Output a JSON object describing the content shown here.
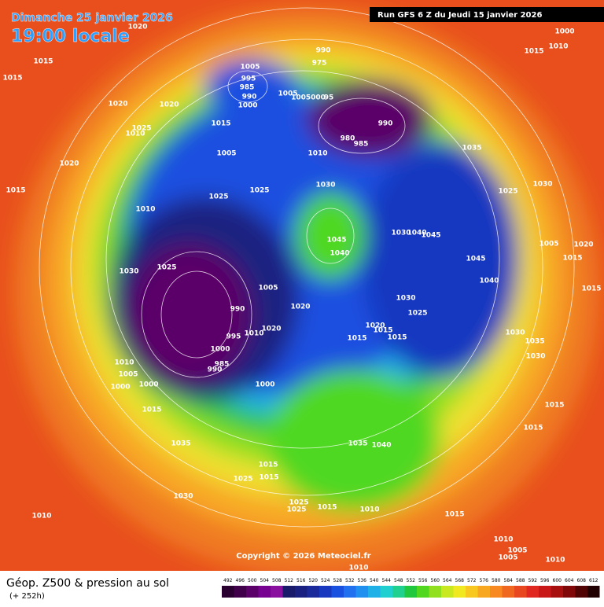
{
  "header": {
    "date": "Dimanche 25 janvier 2026",
    "time": "19:00 locale",
    "run": "Run GFS 6 Z du Jeudi 15 janvier 2026"
  },
  "map": {
    "pressure_labels": [
      "1020",
      "1015",
      "1015",
      "1020",
      "1020",
      "1005",
      "995",
      "985",
      "990",
      "1000",
      "990",
      "975",
      "1005",
      "1005000",
      "95",
      "990",
      "980",
      "985",
      "1015",
      "1025",
      "1010",
      "1005",
      "1010",
      "1035",
      "1020",
      "1015",
      "1025",
      "1025",
      "1030",
      "1025",
      "1030",
      "1010",
      "1045",
      "1040",
      "1030",
      "1040",
      "1045",
      "1005",
      "1020",
      "1045",
      "1015",
      "1030",
      "1025",
      "1040",
      "1015",
      "1005",
      "1020",
      "1030",
      "1025",
      "990",
      "1020",
      "1010",
      "995",
      "1020",
      "1015",
      "1015",
      "1015",
      "1030",
      "1035",
      "1030",
      "1000",
      "1010",
      "985",
      "990",
      "1005",
      "1000",
      "1000",
      "1000",
      "1015",
      "1015",
      "1015",
      "1035",
      "1035",
      "1040",
      "1015",
      "1025",
      "1015",
      "1030",
      "1025",
      "1015",
      "1025",
      "1010",
      "1015",
      "1010",
      "1010",
      "1005",
      "1005",
      "1010",
      "1010",
      "1015",
      "1010",
      "1000"
    ],
    "copyright": "Copyright © 2026 Meteociel.fr"
  },
  "footer": {
    "title": "Géop. Z500 & pression au sol",
    "lead": "(+ 252h)"
  },
  "scale": {
    "values": [
      492,
      496,
      500,
      504,
      508,
      512,
      516,
      520,
      524,
      528,
      532,
      536,
      540,
      544,
      548,
      552,
      556,
      560,
      564,
      568,
      572,
      576,
      580,
      584,
      588,
      592,
      596,
      600,
      604,
      608,
      612
    ],
    "colors": [
      "#2a0030",
      "#40004a",
      "#5a0068",
      "#780090",
      "#8a10a0",
      "#1a1a6a",
      "#1a2080",
      "#1a2a9a",
      "#1838c0",
      "#1a50e0",
      "#2070f0",
      "#2090f0",
      "#20b0e8",
      "#20d0d0",
      "#20d090",
      "#20c840",
      "#50d820",
      "#90e020",
      "#c8e820",
      "#f0e820",
      "#f8c820",
      "#f8a820",
      "#f88820",
      "#f06820",
      "#e84820",
      "#e02820",
      "#c81818",
      "#a81010",
      "#800808",
      "#500404",
      "#200000"
    ]
  }
}
